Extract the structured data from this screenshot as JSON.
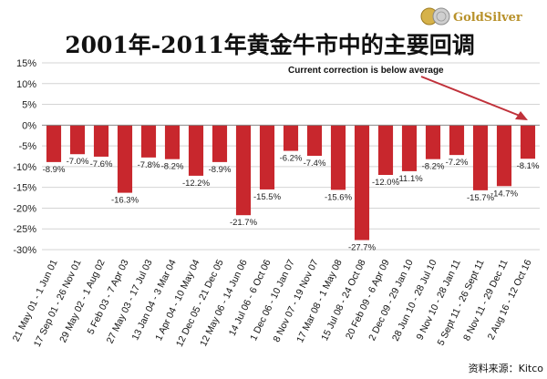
{
  "logo": {
    "text": "GoldSilver",
    "icon": "coin-icon"
  },
  "source_note": "资料来源：Kitco",
  "chart_data": {
    "type": "bar",
    "title": "2001年-2011年黄金牛市中的主要回调",
    "annotation": "Current correction is below average",
    "ylim": [
      -30,
      15
    ],
    "yticks": [
      15,
      10,
      5,
      0,
      -5,
      -10,
      -15,
      -20,
      -25,
      -30
    ],
    "ytick_labels": [
      "15%",
      "10%",
      "5%",
      "0%",
      "-5%",
      "-10%",
      "-15%",
      "-20%",
      "-25%",
      "-30%"
    ],
    "categories": [
      "21 May 01 - 1 Jun 01",
      "17 Sep 01 - 26 Nov 01",
      "29 May 02 - 1 Aug 02",
      "5 Feb 03 - 7 Apr 03",
      "27 May 03 - 17 Jul 03",
      "13 Jan 04 - 3 Mar 04",
      "1 Apr 04 - 10 May 04",
      "12 Dec 05 - 21 Dec 05",
      "12 May 06 - 14 Jun 06",
      "14 Jul 06 - 6 Oct 06",
      "1 Dec 06 - 10 Jan 07",
      "8 Nov 07 - 19 Nov 07",
      "17 Mar 08 - 1 May 08",
      "15 Jul 08 - 24 Oct 08",
      "20 Feb 09 - 6 Apr 09",
      "2 Dec 09 - 29 Jan 10",
      "28 Jun 10 - 28 Jul 10",
      "9 Nov 10 - 28 Jan 11",
      "5 Sept 11 - 26 Sept 11",
      "8 Nov 11 - 29 Dec 11",
      "2 Aug 16 - 12 Oct 16"
    ],
    "values": [
      -8.9,
      -7.0,
      -7.6,
      -16.3,
      -7.8,
      -8.2,
      -12.2,
      -8.9,
      -21.7,
      -15.5,
      -6.2,
      -7.4,
      -15.6,
      -27.7,
      -12.0,
      -11.1,
      -8.2,
      -7.2,
      -15.7,
      -14.7,
      -8.1
    ],
    "value_labels": [
      "-8.9%",
      "-7.0%",
      "-7.6%",
      "-16.3%",
      "-7.8%",
      "-8.2%",
      "-12.2%",
      "-8.9%",
      "-21.7%",
      "-15.5%",
      "-6.2%",
      "-7.4%",
      "-15.6%",
      "-27.7%",
      "-12.0%",
      "-11.1%",
      "-8.2%",
      "-7.2%",
      "-15.7%",
      "-14.7%",
      "-8.1%"
    ],
    "colors": {
      "bar": "#c8272d",
      "arrow": "#c0313a",
      "grid": "#d4d4d4"
    }
  }
}
